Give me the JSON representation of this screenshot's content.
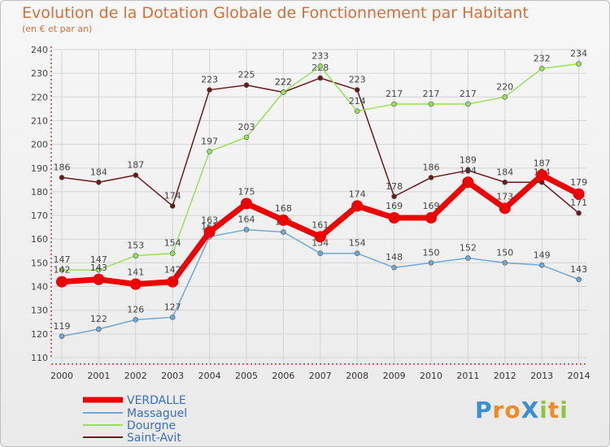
{
  "chart_data": {
    "type": "line",
    "title": "Evolution de la Dotation Globale de Fonctionnement par Habitant",
    "subtitle": "(en € et par an)",
    "xlabel": "",
    "ylabel": "",
    "ylim": [
      110,
      240
    ],
    "yticks": [
      110,
      120,
      130,
      140,
      150,
      160,
      170,
      180,
      190,
      200,
      210,
      220,
      230,
      240
    ],
    "categories": [
      "2000",
      "2001",
      "2002",
      "2003",
      "2004",
      "2005",
      "2006",
      "2007",
      "2008",
      "2009",
      "2010",
      "2011",
      "2012",
      "2013",
      "2014"
    ],
    "series": [
      {
        "name": "Saint-Avit",
        "color": "#6b1a1a",
        "values": [
          186,
          184,
          187,
          174,
          223,
          225,
          222,
          228,
          223,
          178,
          186,
          189,
          184,
          184,
          171
        ]
      },
      {
        "name": "Dourgne",
        "color": "#99e05a",
        "values": [
          147,
          147,
          153,
          154,
          197,
          203,
          222,
          233,
          214,
          217,
          217,
          217,
          220,
          232,
          234
        ]
      },
      {
        "name": "Massaguel",
        "color": "#6ea9d6",
        "values": [
          119,
          122,
          126,
          127,
          161,
          164,
          163,
          154,
          154,
          148,
          150,
          152,
          150,
          149,
          143
        ]
      },
      {
        "name": "VERDALLE",
        "color": "#ee0000",
        "values": [
          142,
          143,
          141,
          142,
          163,
          175,
          168,
          161,
          174,
          169,
          169,
          184,
          173,
          187,
          179
        ]
      }
    ],
    "legend": [
      "VERDALLE",
      "Massaguel",
      "Dourgne",
      "Saint-Avit"
    ],
    "legend_position": "bottom-left"
  },
  "logo": {
    "text": "ProXiti",
    "letters": [
      "P",
      "r",
      "o",
      "X",
      "i",
      "t",
      "i"
    ],
    "colors": [
      "#3a8fd6",
      "#f08a24",
      "#f08a24",
      "#3a8fd6",
      "#8cc63f",
      "#f08a24",
      "#8cc63f"
    ]
  }
}
